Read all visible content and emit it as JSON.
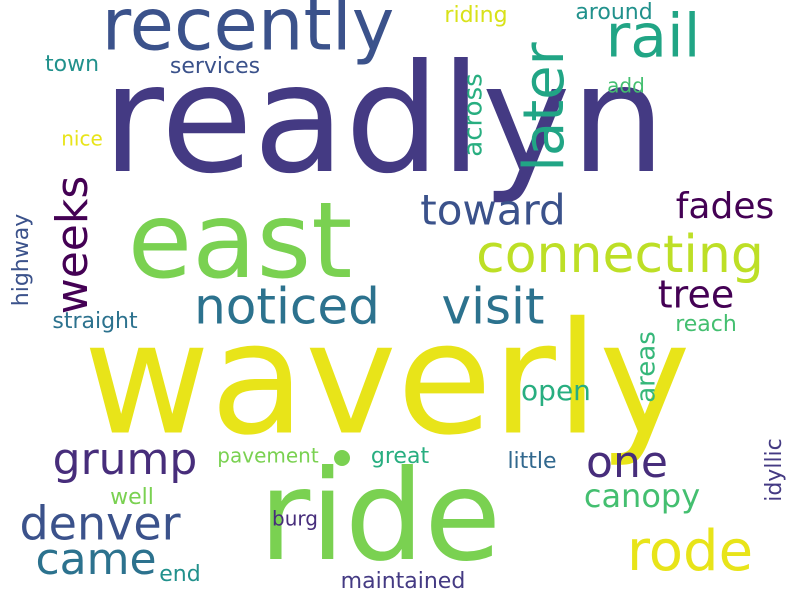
{
  "word_cloud": {
    "words": [
      {
        "text": "readlyn",
        "color": "#443a83"
      },
      {
        "text": "waverly",
        "color": "#e8e419"
      },
      {
        "text": "ride",
        "color": "#7ad151"
      },
      {
        "text": "east",
        "color": "#7ad151"
      },
      {
        "text": "recently",
        "color": "#3b528b"
      },
      {
        "text": "rail",
        "color": "#21a585"
      },
      {
        "text": "later",
        "color": "#21a585"
      },
      {
        "text": "connecting",
        "color": "#bddf26"
      },
      {
        "text": "noticed",
        "color": "#2c728e"
      },
      {
        "text": "visit",
        "color": "#2c728e"
      },
      {
        "text": "toward",
        "color": "#3b528b"
      },
      {
        "text": "fades",
        "color": "#440154"
      },
      {
        "text": "tree",
        "color": "#440154"
      },
      {
        "text": "weeks",
        "color": "#440154"
      },
      {
        "text": "grump",
        "color": "#472d7b"
      },
      {
        "text": "one",
        "color": "#472d7b"
      },
      {
        "text": "denver",
        "color": "#3b528b"
      },
      {
        "text": "came",
        "color": "#2c728e"
      },
      {
        "text": "rode",
        "color": "#e8e419"
      },
      {
        "text": "canopy",
        "color": "#44bf70"
      },
      {
        "text": "open",
        "color": "#28ae80"
      },
      {
        "text": "areas",
        "color": "#35b779"
      },
      {
        "text": "across",
        "color": "#28ae80"
      },
      {
        "text": "highway",
        "color": "#3b528b"
      },
      {
        "text": "riding",
        "color": "#d8e219"
      },
      {
        "text": "around",
        "color": "#21918c"
      },
      {
        "text": "town",
        "color": "#21918c"
      },
      {
        "text": "services",
        "color": "#3b528b"
      },
      {
        "text": "add",
        "color": "#44bf70"
      },
      {
        "text": "nice",
        "color": "#e8e419"
      },
      {
        "text": "straight",
        "color": "#2c728e"
      },
      {
        "text": "reach",
        "color": "#44bf70"
      },
      {
        "text": "pavement",
        "color": "#7ad151"
      },
      {
        "text": "great",
        "color": "#28ae80"
      },
      {
        "text": "little",
        "color": "#31688e"
      },
      {
        "text": "well",
        "color": "#7ad151"
      },
      {
        "text": "burg",
        "color": "#472d7b"
      },
      {
        "text": "idyllic",
        "color": "#443a83"
      },
      {
        "text": "end",
        "color": "#21918c"
      },
      {
        "text": "maintained",
        "color": "#443a83"
      }
    ]
  }
}
